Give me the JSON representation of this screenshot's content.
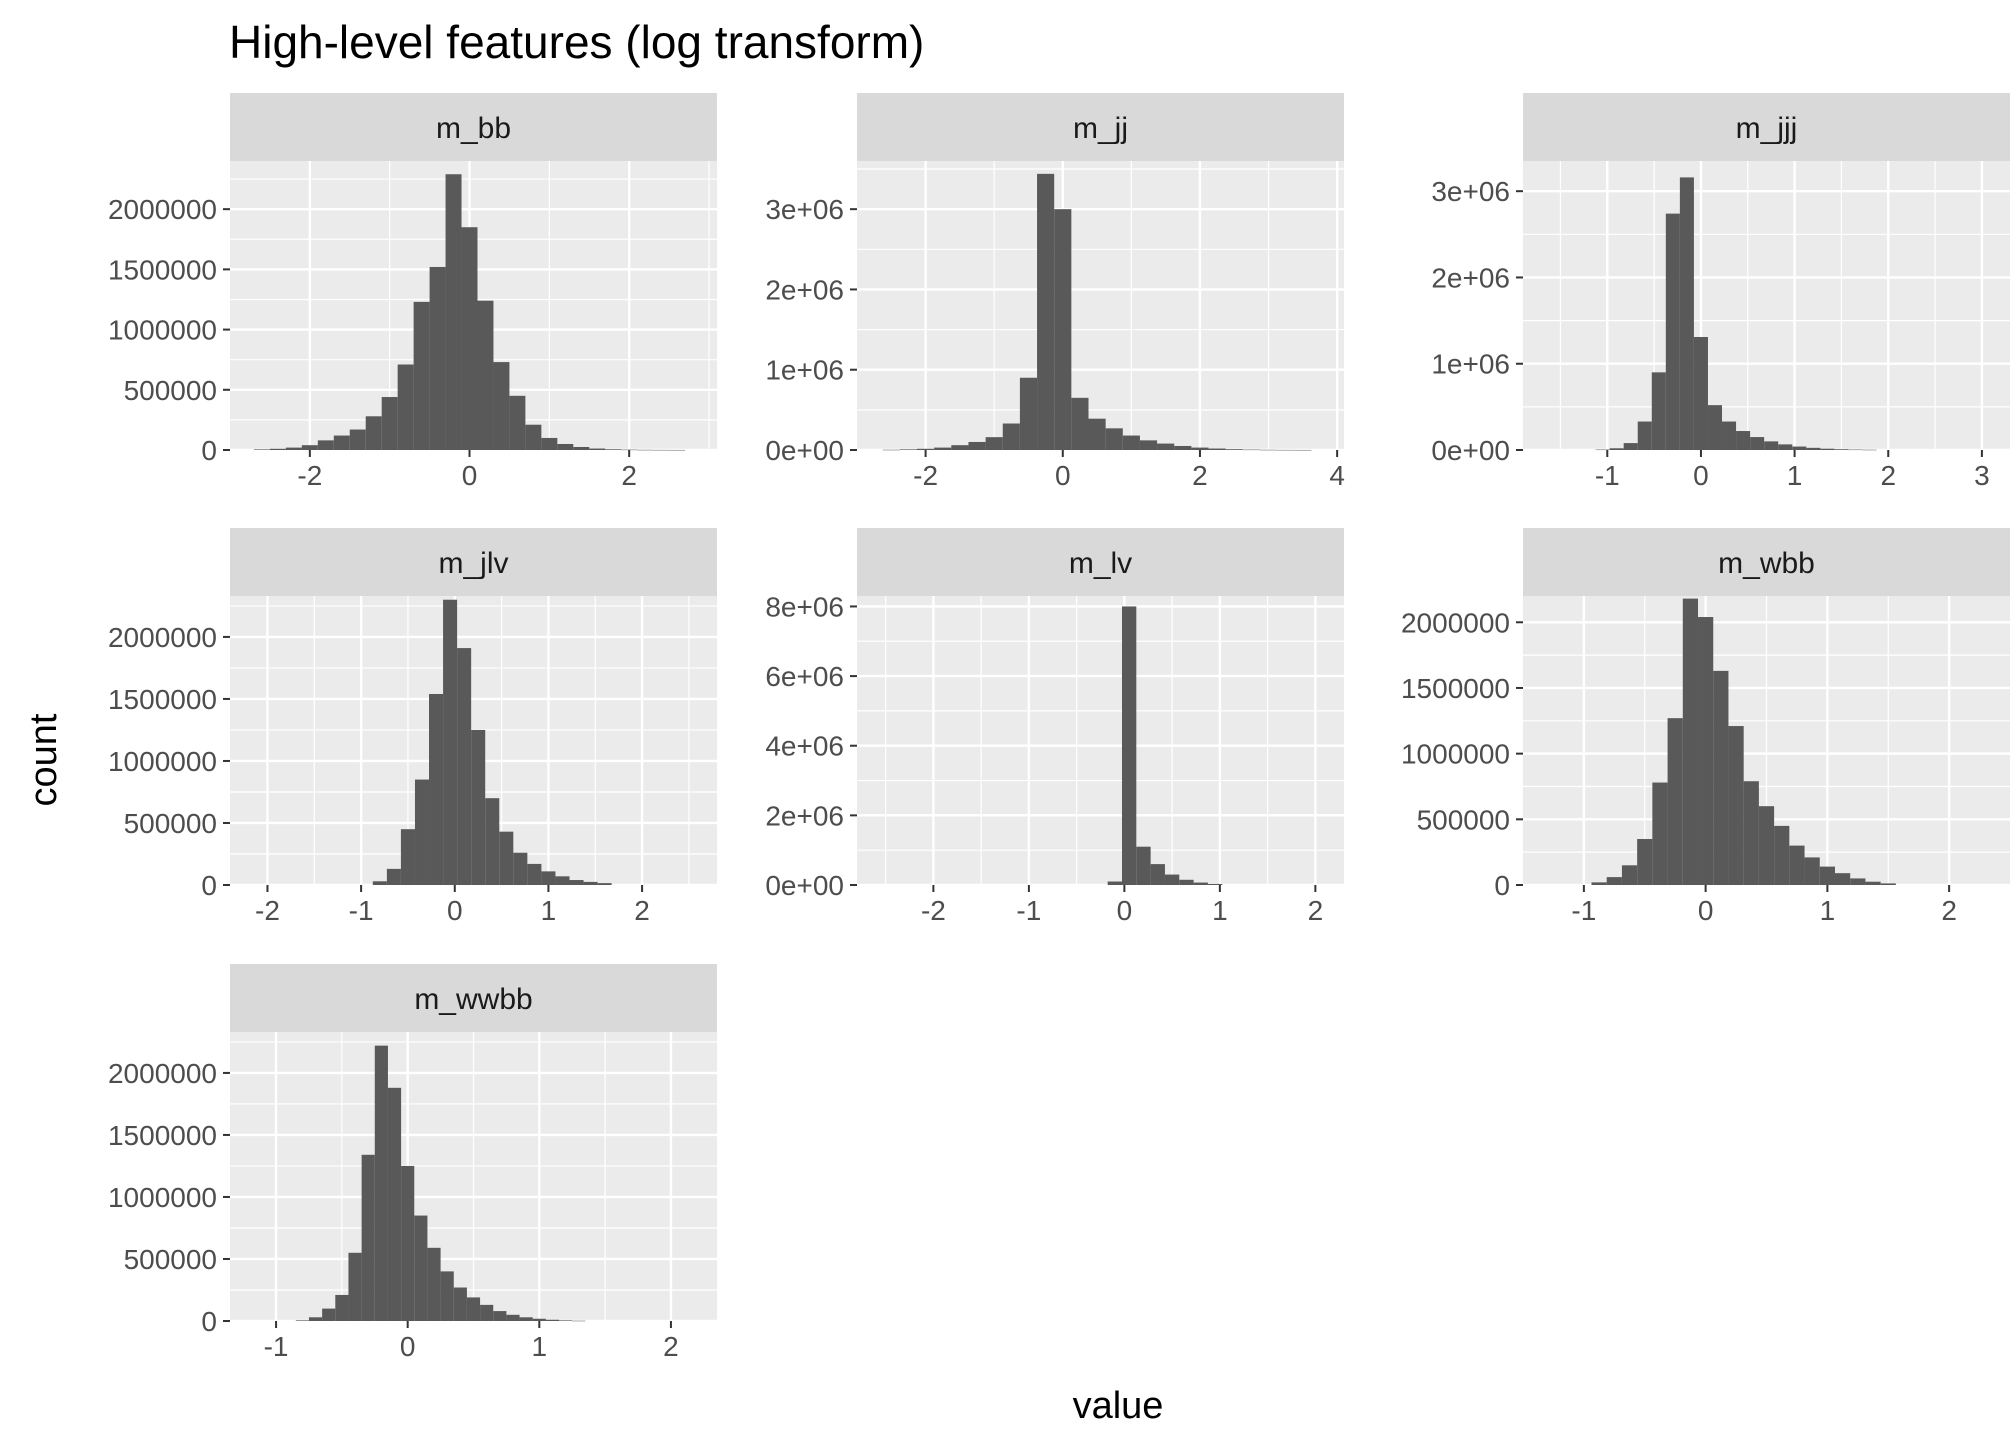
{
  "figure": {
    "title": "High-level features (log transform)",
    "xlabel": "value",
    "ylabel": "count",
    "colors": {
      "panel_bg": "#ebebeb",
      "strip_bg": "#d9d9d9",
      "bar": "#595959",
      "grid": "#ffffff",
      "text": "#4d4d4d",
      "title": "#000000"
    }
  },
  "chart_data": [
    {
      "type": "bar",
      "title": "m_bb",
      "xlim": [
        -3.0,
        3.1
      ],
      "ylim": [
        0,
        2400000
      ],
      "xticks": [
        -2,
        0,
        2
      ],
      "xtick_labels": [
        "-2",
        "0",
        "2"
      ],
      "yticks": [
        0,
        500000,
        1000000,
        1500000,
        2000000
      ],
      "ytick_labels": [
        "0",
        "500000",
        "1000000",
        "1500000",
        "2000000"
      ],
      "bin_width": 0.2,
      "bin_centers": [
        -2.6,
        -2.4,
        -2.2,
        -2.0,
        -1.8,
        -1.6,
        -1.4,
        -1.2,
        -1.0,
        -0.8,
        -0.6,
        -0.4,
        -0.2,
        0.0,
        0.2,
        0.4,
        0.6,
        0.8,
        1.0,
        1.2,
        1.4,
        1.6,
        1.8,
        2.0,
        2.2,
        2.4,
        2.6
      ],
      "values": [
        5000,
        10000,
        20000,
        40000,
        80000,
        120000,
        170000,
        280000,
        440000,
        710000,
        1230000,
        1520000,
        2290000,
        1850000,
        1240000,
        730000,
        450000,
        210000,
        100000,
        50000,
        25000,
        12000,
        6000,
        3000,
        1500,
        800,
        400
      ]
    },
    {
      "type": "bar",
      "title": "m_jj",
      "xlim": [
        -3.0,
        4.1
      ],
      "ylim": [
        0,
        3600000
      ],
      "xticks": [
        -2,
        0,
        2,
        4
      ],
      "xtick_labels": [
        "-2",
        "0",
        "2",
        "4"
      ],
      "yticks": [
        0,
        1000000,
        2000000,
        3000000
      ],
      "ytick_labels": [
        "0e+00",
        "1e+06",
        "2e+06",
        "3e+06"
      ],
      "bin_width": 0.25,
      "bin_centers": [
        -2.5,
        -2.25,
        -2.0,
        -1.75,
        -1.5,
        -1.25,
        -1.0,
        -0.75,
        -0.5,
        -0.25,
        0.0,
        0.25,
        0.5,
        0.75,
        1.0,
        1.25,
        1.5,
        1.75,
        2.0,
        2.25,
        2.5,
        2.75,
        3.0,
        3.25,
        3.5
      ],
      "values": [
        3000,
        8000,
        15000,
        30000,
        60000,
        100000,
        160000,
        330000,
        900000,
        3440000,
        3000000,
        650000,
        390000,
        270000,
        180000,
        120000,
        80000,
        50000,
        30000,
        18000,
        10000,
        5000,
        2500,
        1200,
        600
      ]
    },
    {
      "type": "bar",
      "title": "m_jjj",
      "xlim": [
        -1.9,
        3.3
      ],
      "ylim": [
        0,
        3350000
      ],
      "xticks": [
        -1,
        0,
        1,
        2,
        3
      ],
      "xtick_labels": [
        "-1",
        "0",
        "1",
        "2",
        "3"
      ],
      "yticks": [
        0,
        1000000,
        2000000,
        3000000
      ],
      "ytick_labels": [
        "0e+00",
        "1e+06",
        "2e+06",
        "3e+06"
      ],
      "bin_width": 0.15,
      "bin_centers": [
        -1.05,
        -0.9,
        -0.75,
        -0.6,
        -0.45,
        -0.3,
        -0.15,
        0.0,
        0.15,
        0.3,
        0.45,
        0.6,
        0.75,
        0.9,
        1.05,
        1.2,
        1.35,
        1.5,
        1.65,
        1.8
      ],
      "values": [
        5000,
        20000,
        80000,
        330000,
        900000,
        2740000,
        3160000,
        1310000,
        520000,
        330000,
        220000,
        150000,
        100000,
        65000,
        40000,
        25000,
        15000,
        9000,
        5000,
        3000
      ]
    },
    {
      "type": "bar",
      "title": "m_jlv",
      "xlim": [
        -2.4,
        2.8
      ],
      "ylim": [
        0,
        2330000
      ],
      "xticks": [
        -2,
        -1,
        0,
        1,
        2
      ],
      "xtick_labels": [
        "-2",
        "-1",
        "0",
        "1",
        "2"
      ],
      "yticks": [
        0,
        500000,
        1000000,
        1500000,
        2000000
      ],
      "ytick_labels": [
        "0",
        "500000",
        "1000000",
        "1500000",
        "2000000"
      ],
      "bin_width": 0.15,
      "bin_centers": [
        -0.8,
        -0.65,
        -0.5,
        -0.35,
        -0.2,
        -0.05,
        0.1,
        0.25,
        0.4,
        0.55,
        0.7,
        0.85,
        1.0,
        1.15,
        1.3,
        1.45,
        1.6
      ],
      "values": [
        30000,
        130000,
        450000,
        850000,
        1540000,
        2300000,
        1910000,
        1250000,
        700000,
        430000,
        260000,
        170000,
        110000,
        70000,
        40000,
        25000,
        15000
      ]
    },
    {
      "type": "bar",
      "title": "m_lv",
      "xlim": [
        -2.8,
        2.3
      ],
      "ylim": [
        0,
        8300000
      ],
      "xticks": [
        -2,
        -1,
        0,
        1,
        2
      ],
      "xtick_labels": [
        "-2",
        "-1",
        "0",
        "1",
        "2"
      ],
      "yticks": [
        0,
        2000000,
        4000000,
        6000000,
        8000000
      ],
      "ytick_labels": [
        "0e+00",
        "2e+06",
        "4e+06",
        "6e+06",
        "8e+06"
      ],
      "bin_width": 0.15,
      "bin_centers": [
        -0.1,
        0.05,
        0.2,
        0.35,
        0.5,
        0.65,
        0.8,
        0.95
      ],
      "values": [
        100000,
        8000000,
        1100000,
        600000,
        300000,
        150000,
        70000,
        30000
      ]
    },
    {
      "type": "bar",
      "title": "m_wbb",
      "xlim": [
        -1.5,
        2.5
      ],
      "ylim": [
        0,
        2200000
      ],
      "xticks": [
        -1,
        0,
        1,
        2
      ],
      "xtick_labels": [
        "-1",
        "0",
        "1",
        "2"
      ],
      "yticks": [
        0,
        500000,
        1000000,
        1500000,
        2000000
      ],
      "ytick_labels": [
        "0",
        "500000",
        "1000000",
        "1500000",
        "2000000"
      ],
      "bin_width": 0.125,
      "bin_centers": [
        -0.875,
        -0.75,
        -0.625,
        -0.5,
        -0.375,
        -0.25,
        -0.125,
        0.0,
        0.125,
        0.25,
        0.375,
        0.5,
        0.625,
        0.75,
        0.875,
        1.0,
        1.125,
        1.25,
        1.375,
        1.5
      ],
      "values": [
        20000,
        60000,
        150000,
        350000,
        780000,
        1270000,
        2180000,
        2040000,
        1630000,
        1210000,
        790000,
        600000,
        450000,
        300000,
        210000,
        140000,
        90000,
        50000,
        25000,
        12000
      ]
    },
    {
      "type": "bar",
      "title": "m_wwbb",
      "xlim": [
        -1.35,
        2.35
      ],
      "ylim": [
        0,
        2330000
      ],
      "xticks": [
        -1,
        0,
        1,
        2
      ],
      "xtick_labels": [
        "-1",
        "0",
        "1",
        "2"
      ],
      "yticks": [
        0,
        500000,
        1000000,
        1500000,
        2000000
      ],
      "ytick_labels": [
        "0",
        "500000",
        "1000000",
        "1500000",
        "2000000"
      ],
      "bin_width": 0.1,
      "bin_centers": [
        -0.8,
        -0.7,
        -0.6,
        -0.5,
        -0.4,
        -0.3,
        -0.2,
        -0.1,
        0.0,
        0.1,
        0.2,
        0.3,
        0.4,
        0.5,
        0.6,
        0.7,
        0.8,
        0.9,
        1.0,
        1.1,
        1.2,
        1.3
      ],
      "values": [
        5000,
        30000,
        100000,
        210000,
        550000,
        1340000,
        2220000,
        1880000,
        1250000,
        850000,
        590000,
        400000,
        270000,
        190000,
        130000,
        80000,
        50000,
        30000,
        18000,
        10000,
        5000,
        2000
      ]
    }
  ]
}
